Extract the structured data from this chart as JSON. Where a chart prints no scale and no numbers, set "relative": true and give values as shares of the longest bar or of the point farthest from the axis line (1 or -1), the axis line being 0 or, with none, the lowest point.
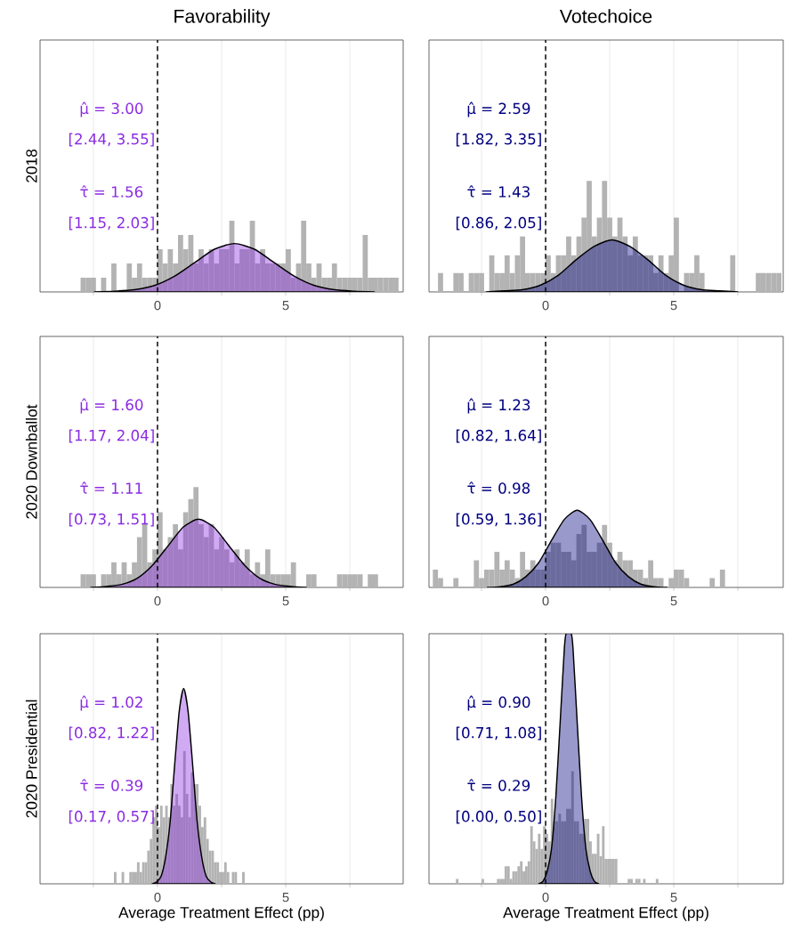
{
  "chart_data": [
    {
      "type": "histogram",
      "title": "Favorability",
      "ylabel": "2018",
      "relative": true,
      "color": "#b3b3b3",
      "xlim": [
        -4.58,
        9.58
      ],
      "xticks": [
        {
          "value": -2.5,
          "label": null
        },
        0,
        {
          "value": 2.5,
          "label": null
        },
        5,
        {
          "value": 7.5,
          "label": null
        }
      ],
      "grid": "x",
      "annotations": [
        "μ̂ = 3.00",
        "[2.44, 3.55]",
        "τ̂ = 1.56",
        "[1.15, 2.03]"
      ],
      "ref_lines": [
        {
          "axis": "x",
          "value": 0,
          "color": "#000000",
          "line_style": "dashed"
        }
      ],
      "bins": [
        -3,
        -2.8,
        -2.6,
        -2.4,
        -2.2,
        -2,
        -1.8,
        -1.6,
        -1.4,
        -1.2,
        -1,
        -0.8,
        -0.6,
        -0.4,
        -0.2,
        0,
        0.2,
        0.4,
        0.6,
        0.8,
        1,
        1.2,
        1.4,
        1.6,
        1.8,
        2,
        2.2,
        2.4,
        2.6,
        2.8,
        3,
        3.2,
        3.4,
        3.6,
        3.8,
        4,
        4.2,
        4.4,
        4.6,
        4.8,
        5,
        5.2,
        5.4,
        5.6,
        5.8,
        6,
        6.2,
        6.4,
        6.6,
        6.8,
        7,
        7.2,
        7.4,
        7.6,
        7.8,
        8,
        8.2,
        8.4,
        8.6,
        8.8,
        9,
        9.2,
        9.4
      ],
      "values": [
        0.2,
        0.2,
        0.2,
        0,
        0.2,
        0,
        0.4,
        0,
        0,
        0.4,
        0.2,
        0.4,
        0.2,
        0.2,
        0.2,
        0.6,
        0.4,
        0.6,
        0.4,
        0.8,
        0.6,
        0.8,
        0.4,
        0.6,
        0.4,
        0.6,
        0.4,
        0.6,
        0.6,
        1,
        0.4,
        0.6,
        0.6,
        1,
        0.4,
        0.6,
        0.4,
        0.4,
        0.4,
        0.4,
        0.6,
        0.2,
        0.4,
        1,
        0.4,
        0.2,
        0.4,
        0.2,
        0.2,
        0.4,
        0.2,
        0.2,
        0.2,
        0.2,
        0.2,
        0.8,
        0.2,
        0.2,
        0.2,
        0.2,
        0.2,
        0.2
      ],
      "series": [
        {
          "type": "area",
          "color": "#8a2be2",
          "x": [
            -2.46,
            -1.68,
            -0.9,
            -0.12,
            0.66,
            1.44,
            2.22,
            3,
            3.78,
            4.56,
            5.34,
            6.12,
            6.9,
            7.68,
            8.46
          ],
          "values": [
            0,
            0.01,
            0.03,
            0.09,
            0.22,
            0.41,
            0.6,
            0.68,
            0.6,
            0.41,
            0.22,
            0.09,
            0.03,
            0.01,
            0
          ]
        }
      ]
    },
    {
      "type": "histogram",
      "title": "Votechoice",
      "relative": true,
      "color": "#b3b3b3",
      "xlim": [
        -4.55,
        9.27
      ],
      "xticks": [
        {
          "value": -2.5,
          "label": null
        },
        0,
        {
          "value": 2.5,
          "label": null
        },
        5,
        {
          "value": 7.5,
          "label": null
        }
      ],
      "grid": "x",
      "annotations": [
        "μ̂ = 2.59",
        "[1.82, 3.35]",
        "τ̂ = 1.43",
        "[0.86, 2.05]"
      ],
      "ref_lines": [
        {
          "axis": "x",
          "value": 0,
          "color": "#000000",
          "line_style": "dashed"
        }
      ],
      "bins": [
        -4.2,
        -4,
        -3.8,
        -3.6,
        -3.4,
        -3.2,
        -3,
        -2.8,
        -2.6,
        -2.4,
        -2.2,
        -2,
        -1.8,
        -1.6,
        -1.4,
        -1.2,
        -1,
        -0.8,
        -0.6,
        -0.4,
        -0.2,
        0,
        0.2,
        0.4,
        0.6,
        0.8,
        1,
        1.2,
        1.4,
        1.6,
        1.8,
        2,
        2.2,
        2.4,
        2.6,
        2.8,
        3,
        3.2,
        3.4,
        3.6,
        3.8,
        4,
        4.2,
        4.4,
        4.6,
        4.8,
        5,
        5.2,
        5.4,
        5.6,
        5.8,
        6,
        6.2,
        6.4,
        6.6,
        6.8,
        7,
        7.2,
        7.4,
        7.6,
        7.8,
        8,
        8.2,
        8.4,
        8.6,
        8.8,
        9,
        9.2
      ],
      "values": [
        0.17,
        0,
        0,
        0.17,
        0.17,
        0,
        0.17,
        0.17,
        0.17,
        0,
        0.33,
        0.17,
        0.17,
        0.33,
        0.17,
        0.33,
        0.5,
        0.17,
        0.17,
        0.17,
        0.17,
        0.33,
        0.17,
        0.33,
        0.33,
        0.5,
        0.33,
        0.5,
        0.67,
        1,
        0.5,
        0.67,
        1,
        0.67,
        0.5,
        0.67,
        0.5,
        0.33,
        0.5,
        0.33,
        0.33,
        0.33,
        0.17,
        0.33,
        0.17,
        0.33,
        0.67,
        0,
        0.17,
        0.17,
        0.33,
        0.17,
        0,
        0,
        0,
        0,
        0,
        0.33,
        0,
        0,
        0,
        0,
        0.17,
        0.17,
        0.17,
        0.17,
        0.17
      ],
      "series": [
        {
          "type": "area",
          "color": "#000080",
          "x": [
            -2.31,
            -1.61,
            -0.91,
            -0.21,
            0.49,
            1.19,
            1.89,
            2.59,
            3.29,
            3.99,
            4.69,
            5.39,
            6.09,
            6.79,
            7.49
          ],
          "values": [
            0,
            0.01,
            0.02,
            0.06,
            0.15,
            0.29,
            0.41,
            0.47,
            0.41,
            0.29,
            0.15,
            0.06,
            0.02,
            0.01,
            0
          ]
        }
      ]
    },
    {
      "type": "histogram",
      "ylabel": "2020 Downballot",
      "relative": true,
      "color": "#b3b3b3",
      "xlim": [
        -4.58,
        9.58
      ],
      "xticks": [
        {
          "value": -2.5,
          "label": null
        },
        0,
        {
          "value": 2.5,
          "label": null
        },
        5,
        {
          "value": 7.5,
          "label": null
        }
      ],
      "grid": "x",
      "annotations": [
        "μ̂ = 1.60",
        "[1.17, 2.04]",
        "τ̂ = 1.11",
        "[0.73, 1.51]"
      ],
      "ref_lines": [
        {
          "axis": "x",
          "value": 0,
          "color": "#000000",
          "line_style": "dashed"
        }
      ],
      "bins": [
        -3,
        -2.8,
        -2.6,
        -2.4,
        -2.2,
        -2,
        -1.8,
        -1.6,
        -1.4,
        -1.2,
        -1,
        -0.8,
        -0.6,
        -0.4,
        -0.2,
        0,
        0.2,
        0.4,
        0.6,
        0.8,
        1,
        1.2,
        1.4,
        1.6,
        1.8,
        2,
        2.2,
        2.4,
        2.6,
        2.8,
        3,
        3.2,
        3.4,
        3.6,
        3.8,
        4,
        4.2,
        4.4,
        4.6,
        4.8,
        5,
        5.2,
        5.4,
        5.6,
        5.8,
        6,
        6.2,
        6.4,
        6.6,
        6.8,
        7,
        7.2,
        7.4,
        7.6,
        7.8,
        8,
        8.2,
        8.4,
        8.6
      ],
      "values": [
        0.13,
        0.13,
        0.13,
        0,
        0.13,
        0.13,
        0.25,
        0.13,
        0.25,
        0.13,
        0.25,
        0.5,
        0.63,
        0.25,
        0.38,
        0.75,
        0.38,
        0.5,
        0.63,
        0.38,
        0.75,
        0.88,
        1,
        0.63,
        0.5,
        0.63,
        0.38,
        0.5,
        0.38,
        0.25,
        0.38,
        0.25,
        0.38,
        0.13,
        0.25,
        0.13,
        0.38,
        0.13,
        0.13,
        0.13,
        0.13,
        0.25,
        0,
        0,
        0.13,
        0.13,
        0,
        0,
        0,
        0,
        0.13,
        0.13,
        0.13,
        0.13,
        0.13,
        0,
        0.13,
        0.13
      ],
      "series": [
        {
          "type": "area",
          "color": "#8a2be2",
          "x": [
            -2.6,
            -2,
            -1.4,
            -0.8,
            -0.2,
            0.4,
            1,
            1.6,
            2.2,
            2.8,
            3.4,
            4,
            4.6,
            5.2,
            5.8
          ],
          "values": [
            0,
            0.01,
            0.03,
            0.09,
            0.22,
            0.41,
            0.6,
            0.68,
            0.6,
            0.41,
            0.22,
            0.09,
            0.03,
            0.01,
            0
          ]
        }
      ]
    },
    {
      "type": "histogram",
      "relative": true,
      "color": "#b3b3b3",
      "xlim": [
        -4.55,
        9.27
      ],
      "xticks": [
        {
          "value": -2.5,
          "label": null
        },
        0,
        {
          "value": 2.5,
          "label": null
        },
        5,
        {
          "value": 7.5,
          "label": null
        }
      ],
      "grid": "x",
      "annotations": [
        "μ̂ = 1.23",
        "[0.82, 1.64]",
        "τ̂ = 0.98",
        "[0.59, 1.36]"
      ],
      "ref_lines": [
        {
          "axis": "x",
          "value": 0,
          "color": "#000000",
          "line_style": "dashed"
        }
      ],
      "bins": [
        -4.4,
        -4.2,
        -4,
        -3.8,
        -3.6,
        -3.4,
        -3.2,
        -3,
        -2.8,
        -2.6,
        -2.4,
        -2.2,
        -2,
        -1.8,
        -1.6,
        -1.4,
        -1.2,
        -1,
        -0.8,
        -0.6,
        -0.4,
        -0.2,
        0,
        0.2,
        0.4,
        0.6,
        0.8,
        1,
        1.2,
        1.4,
        1.6,
        1.8,
        2,
        2.2,
        2.4,
        2.6,
        2.8,
        3,
        3.2,
        3.4,
        3.6,
        3.8,
        4,
        4.2,
        4.4,
        4.6,
        4.8,
        5,
        5.2,
        5.4,
        5.6,
        5.8,
        6,
        6.2,
        6.4,
        6.6,
        6.8,
        7
      ],
      "values": [
        0.23,
        0.12,
        0,
        0,
        0.12,
        0,
        0,
        0,
        0.35,
        0.12,
        0.23,
        0.23,
        0.46,
        0.23,
        0.35,
        0.23,
        0.12,
        0.46,
        0.23,
        0.35,
        0.23,
        0.23,
        0.46,
        0.58,
        0.58,
        0.46,
        0.46,
        0.35,
        0.69,
        0.81,
        0.46,
        0.46,
        0.58,
        0.81,
        0.58,
        0.35,
        0.46,
        0.35,
        0.35,
        0.23,
        0.23,
        0.12,
        0.35,
        0.12,
        0.12,
        0,
        0.12,
        0.23,
        0.23,
        0.12,
        0,
        0,
        0,
        0,
        0.12,
        0,
        0.23
      ],
      "series": [
        {
          "type": "area",
          "color": "#000080",
          "x": [
            -2.27,
            -1.77,
            -1.27,
            -0.77,
            -0.27,
            0.23,
            0.73,
            1.23,
            1.73,
            2.23,
            2.73,
            3.23,
            3.73,
            4.23,
            4.73
          ],
          "values": [
            0,
            0.01,
            0.04,
            0.14,
            0.32,
            0.61,
            0.88,
            1,
            0.88,
            0.61,
            0.32,
            0.14,
            0.04,
            0.01,
            0
          ]
        }
      ]
    },
    {
      "type": "histogram",
      "ylabel": "2020 Presidential",
      "xlabel": "Average Treatment Effect (pp)",
      "relative": true,
      "color": "#b3b3b3",
      "xlim": [
        -4.58,
        9.58
      ],
      "xticks": [
        {
          "value": -2.5,
          "label": null
        },
        0,
        {
          "value": 2.5,
          "label": null
        },
        5,
        {
          "value": 7.5,
          "label": null
        }
      ],
      "grid": "x",
      "annotations": [
        "μ̂ = 1.02",
        "[0.82, 1.22]",
        "τ̂ = 0.39",
        "[0.17, 0.57]"
      ],
      "ref_lines": [
        {
          "axis": "x",
          "value": 0,
          "color": "#000000",
          "line_style": "dashed"
        }
      ],
      "bins": [
        -1.8,
        -1.7,
        -1.6,
        -1.5,
        -1.4,
        -1.3,
        -1.2,
        -1.1,
        -1,
        -0.9,
        -0.8,
        -0.7,
        -0.6,
        -0.5,
        -0.4,
        -0.3,
        -0.2,
        -0.1,
        0,
        0.1,
        0.2,
        0.3,
        0.4,
        0.5,
        0.6,
        0.7,
        0.8,
        0.9,
        1,
        1.1,
        1.2,
        1.3,
        1.4,
        1.5,
        1.6,
        1.7,
        1.8,
        1.9,
        2,
        2.1,
        2.2,
        2.3,
        2.4,
        2.5,
        2.6,
        2.7,
        2.8,
        2.9,
        3,
        3.1,
        3.2,
        3.3,
        3.4
      ],
      "values": [
        0,
        0.06,
        0,
        0,
        0.06,
        0,
        0,
        0.06,
        0.06,
        0.06,
        0.11,
        0.06,
        0.11,
        0.11,
        0.17,
        0.23,
        0.34,
        0.4,
        0.29,
        0.4,
        0.34,
        0.4,
        0.34,
        0.51,
        0.4,
        0.46,
        0.4,
        0.34,
        0.68,
        0.46,
        0.34,
        0.57,
        0.51,
        0.51,
        0.4,
        0.29,
        0.34,
        0.23,
        0.17,
        0.17,
        0.11,
        0.11,
        0.06,
        0.06,
        0.11,
        0.06,
        0,
        0.06,
        0.06,
        0,
        0,
        0.06
      ],
      "series": [
        {
          "type": "area",
          "color": "#8a2be2",
          "x": [
            -0.205,
            -0.03,
            0.145,
            0.32,
            0.495,
            0.67,
            0.845,
            1.02,
            1.195,
            1.37,
            1.545,
            1.72,
            1.895,
            2.07,
            2.245
          ],
          "values": [
            0,
            0.01,
            0.04,
            0.14,
            0.32,
            0.61,
            0.88,
            1,
            0.88,
            0.61,
            0.32,
            0.14,
            0.04,
            0.01,
            0
          ]
        }
      ]
    },
    {
      "type": "histogram",
      "xlabel": "Average Treatment Effect (pp)",
      "relative": true,
      "color": "#b3b3b3",
      "xlim": [
        -4.55,
        9.27
      ],
      "xticks": [
        {
          "value": -2.5,
          "label": null
        },
        0,
        {
          "value": 2.5,
          "label": null
        },
        5,
        {
          "value": 7.5,
          "label": null
        }
      ],
      "grid": "x",
      "annotations": [
        "μ̂ = 0.90",
        "[0.71, 1.08]",
        "τ̂ = 0.29",
        "[0.00, 0.50]"
      ],
      "ref_lines": [
        {
          "axis": "x",
          "value": 0,
          "color": "#000000",
          "line_style": "dashed"
        }
      ],
      "bins": [
        -3.5,
        -3.4,
        -3.3,
        -3.2,
        -3.1,
        -3,
        -2.9,
        -2.8,
        -2.7,
        -2.6,
        -2.5,
        -2.4,
        -2.3,
        -2.2,
        -2.1,
        -2,
        -1.9,
        -1.8,
        -1.7,
        -1.6,
        -1.5,
        -1.4,
        -1.3,
        -1.2,
        -1.1,
        -1,
        -0.9,
        -0.8,
        -0.7,
        -0.6,
        -0.5,
        -0.4,
        -0.3,
        -0.2,
        -0.1,
        0,
        0.1,
        0.2,
        0.3,
        0.4,
        0.5,
        0.6,
        0.7,
        0.8,
        0.9,
        1,
        1.1,
        1.2,
        1.3,
        1.4,
        1.5,
        1.6,
        1.7,
        1.8,
        1.9,
        2,
        2.1,
        2.2,
        2.3,
        2.4,
        2.5,
        2.6,
        2.7,
        2.8,
        2.9,
        3,
        3.1,
        3.2,
        3.3,
        3.4,
        3.5,
        3.6,
        3.7,
        3.8,
        3.9,
        4,
        4.1,
        4.2,
        4.3,
        4.4
      ],
      "values": [
        0.02,
        0,
        0,
        0,
        0,
        0,
        0,
        0,
        0,
        0,
        0.02,
        0,
        0,
        0,
        0,
        0,
        0.02,
        0.02,
        0.02,
        0.07,
        0.07,
        0.02,
        0.05,
        0.05,
        0.07,
        0.09,
        0.05,
        0.07,
        0.09,
        0.23,
        0.17,
        0.14,
        0.2,
        0.14,
        0.23,
        0.2,
        0.17,
        0.34,
        0.25,
        0.25,
        0.28,
        0.25,
        0.25,
        0.3,
        0.3,
        0.45,
        0.25,
        0.25,
        0.2,
        0.2,
        0.26,
        0.26,
        0.17,
        0.12,
        0.12,
        0.2,
        0.11,
        0.23,
        0.1,
        0.1,
        0.1,
        0.1,
        0.1,
        0,
        0,
        0,
        0,
        0.02,
        0.02,
        0,
        0.02,
        0.02,
        0,
        0.02,
        0,
        0,
        0,
        0,
        0.02
      ],
      "series": [
        {
          "type": "area",
          "color": "#000080",
          "x": [
            -0.27,
            -0.1,
            0.06,
            0.23,
            0.4,
            0.57,
            0.73,
            0.8,
            1,
            1.07,
            1.23,
            1.4,
            1.57,
            1.74,
            1.9,
            2.07
          ],
          "values": [
            0,
            0.01,
            0.05,
            0.14,
            0.35,
            0.65,
            0.94,
            1,
            1,
            0.94,
            0.65,
            0.35,
            0.14,
            0.05,
            0.01,
            0
          ]
        }
      ]
    }
  ]
}
